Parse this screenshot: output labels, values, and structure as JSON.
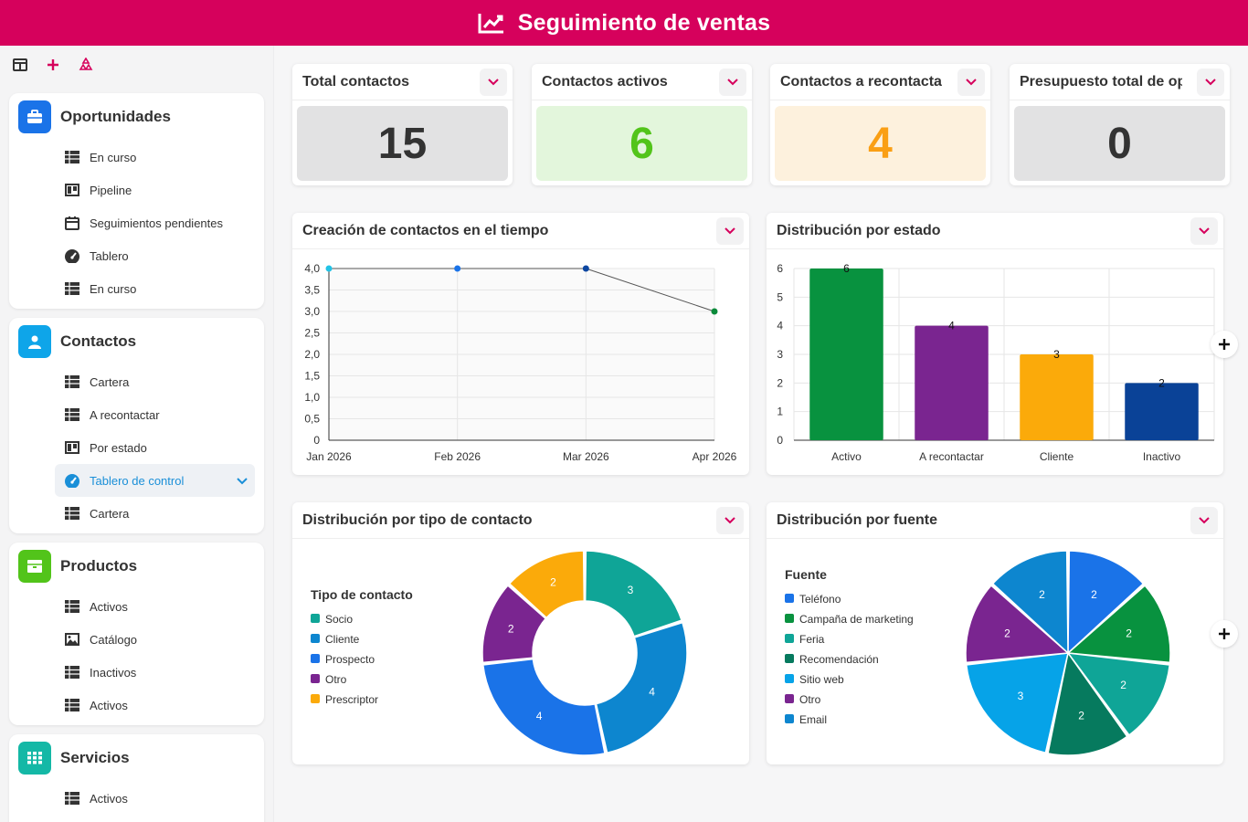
{
  "header": {
    "title": "Seguimiento de ventas",
    "icon": "chart-line-icon"
  },
  "toolbar": {
    "icons": [
      "panel-icon",
      "plus-icon",
      "recycle-icon"
    ]
  },
  "sidebar": {
    "groups": [
      {
        "title": "Oportunidades",
        "icon": "briefcase-icon",
        "color": "#1a73e8",
        "items": [
          {
            "label": "En curso",
            "icon": "table-icon"
          },
          {
            "label": "Pipeline",
            "icon": "kanban-icon"
          },
          {
            "label": "Seguimientos pendientes",
            "icon": "calendar-icon"
          },
          {
            "label": "Tablero",
            "icon": "gauge-icon"
          },
          {
            "label": "En curso",
            "icon": "table-icon"
          }
        ]
      },
      {
        "title": "Contactos",
        "icon": "user-icon",
        "color": "#0ea5e9",
        "items": [
          {
            "label": "Cartera",
            "icon": "table-icon"
          },
          {
            "label": "A recontactar",
            "icon": "table-icon"
          },
          {
            "label": "Por estado",
            "icon": "kanban-icon"
          },
          {
            "label": "Tablero de control",
            "icon": "gauge-icon",
            "active": true
          },
          {
            "label": "Cartera",
            "icon": "table-icon"
          }
        ]
      },
      {
        "title": "Productos",
        "icon": "box-icon",
        "color": "#52c41a",
        "items": [
          {
            "label": "Activos",
            "icon": "table-icon"
          },
          {
            "label": "Catálogo",
            "icon": "image-icon"
          },
          {
            "label": "Inactivos",
            "icon": "table-icon"
          },
          {
            "label": "Activos",
            "icon": "table-icon"
          }
        ]
      },
      {
        "title": "Servicios",
        "icon": "grid-icon",
        "color": "#14b8a6",
        "items": [
          {
            "label": "Activos",
            "icon": "table-icon"
          }
        ]
      }
    ]
  },
  "kpis": [
    {
      "title": "Total contactos",
      "value": "15",
      "bg": "#e2e2e3",
      "fg": "#333333"
    },
    {
      "title": "Contactos activos",
      "value": "6",
      "bg": "#e3f6dc",
      "fg": "#52c41a"
    },
    {
      "title": "Contactos a recontactar",
      "value": "4",
      "bg": "#fdf1dd",
      "fg": "#fa9f14"
    },
    {
      "title": "Presupuesto total de oportunidades",
      "value": "0",
      "bg": "#e2e2e3",
      "fg": "#333333"
    }
  ],
  "panels": {
    "line": {
      "title": "Creación de contactos en el tiempo"
    },
    "bar": {
      "title": "Distribución por estado"
    },
    "donut": {
      "title": "Distribución por tipo de contacto"
    },
    "pie": {
      "title": "Distribución por fuente"
    }
  },
  "chart_data": [
    {
      "type": "line",
      "title": "Creación de contactos en el tiempo",
      "x": [
        "Jan 2026",
        "Feb 2026",
        "Mar 2026",
        "Apr 2026"
      ],
      "values": [
        4,
        4,
        4,
        3
      ],
      "point_colors": [
        "#22c3e6",
        "#1a73e8",
        "#0d47a1",
        "#0a8a3a"
      ],
      "ylim": [
        0,
        4
      ],
      "yticks": [
        "0",
        "0,5",
        "1,0",
        "1,5",
        "2,0",
        "2,5",
        "3,0",
        "3,5",
        "4,0"
      ],
      "grid": true
    },
    {
      "type": "bar",
      "title": "Distribución por estado",
      "categories": [
        "Activo",
        "A recontactar",
        "Cliente",
        "Inactivo"
      ],
      "values": [
        6,
        4,
        3,
        2
      ],
      "colors": [
        "#08923f",
        "#7a2590",
        "#fbaa0a",
        "#0a4297"
      ],
      "ylim": [
        0,
        6
      ],
      "yticks": [
        "0",
        "1",
        "2",
        "3",
        "4",
        "5",
        "6"
      ],
      "grid": true
    },
    {
      "type": "pie",
      "title": "Distribución por tipo de contacto",
      "donut": true,
      "legend_title": "Tipo de contacto",
      "legend": "left",
      "series": [
        {
          "name": "Socio",
          "value": 3,
          "color": "#0fa597"
        },
        {
          "name": "Cliente",
          "value": 4,
          "color": "#0d86cf"
        },
        {
          "name": "Prospecto",
          "value": 4,
          "color": "#1a73e8"
        },
        {
          "name": "Otro",
          "value": 2,
          "color": "#7a2590"
        },
        {
          "name": "Prescriptor",
          "value": 2,
          "color": "#fbaa0a"
        }
      ]
    },
    {
      "type": "pie",
      "title": "Distribución por fuente",
      "legend_title": "Fuente",
      "legend": "left",
      "series": [
        {
          "name": "Teléfono",
          "value": 2,
          "color": "#1a73e8"
        },
        {
          "name": "Campaña de marketing",
          "value": 2,
          "color": "#08923f"
        },
        {
          "name": "Feria",
          "value": 2,
          "color": "#0fa597"
        },
        {
          "name": "Recomendación",
          "value": 2,
          "color": "#067a5e"
        },
        {
          "name": "Sitio web",
          "value": 3,
          "color": "#06a3e8"
        },
        {
          "name": "Otro",
          "value": 2,
          "color": "#7a2590"
        },
        {
          "name": "Email",
          "value": 2,
          "color": "#0d86cf"
        }
      ]
    }
  ]
}
